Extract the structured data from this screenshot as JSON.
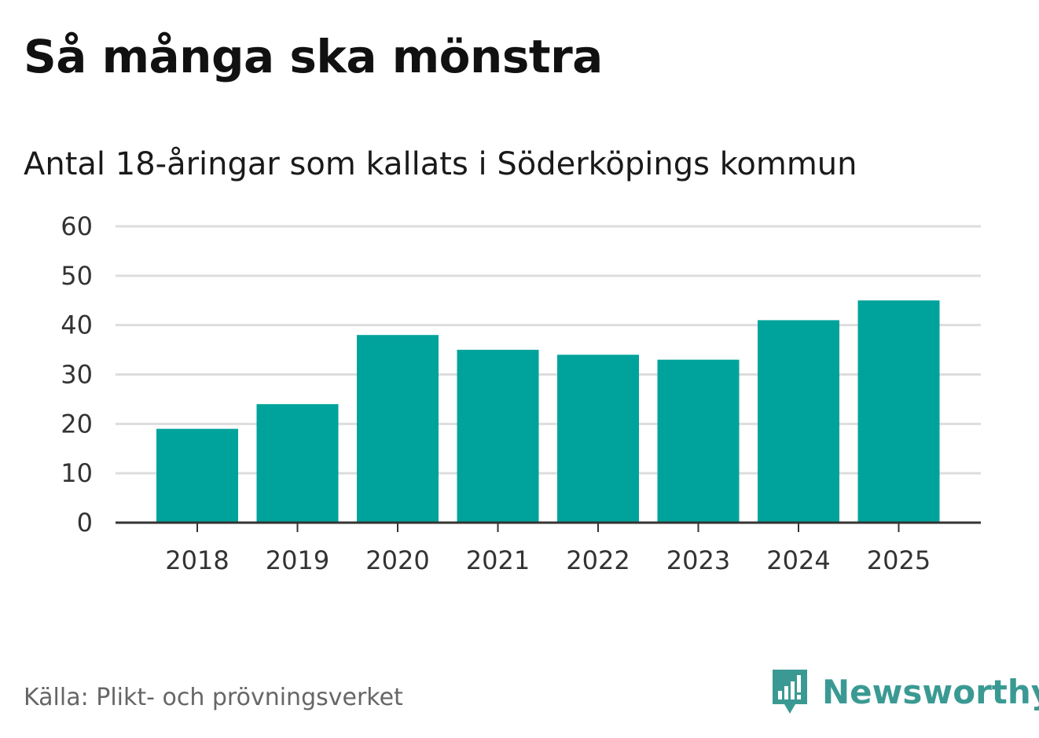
{
  "title": "Så många ska mönstra",
  "subtitle": "Antal 18-åringar som kallats i Söderköpings kommun",
  "source": "Källa: Plikt- och prövningsverket",
  "brand": {
    "name": "Newsworthy",
    "icon": "newsworthy-logo-icon"
  },
  "colors": {
    "bar": "#00a39b",
    "grid": "#dddddd",
    "axis": "#333333",
    "brand": "#3a9a93"
  },
  "chart_data": {
    "type": "bar",
    "categories": [
      "2018",
      "2019",
      "2020",
      "2021",
      "2022",
      "2023",
      "2024",
      "2025"
    ],
    "values": [
      19,
      24,
      38,
      35,
      34,
      33,
      41,
      45
    ],
    "yticks": [
      0,
      10,
      20,
      30,
      40,
      50,
      60
    ],
    "ylim": [
      0,
      60
    ],
    "grid": true,
    "legend": "none"
  }
}
